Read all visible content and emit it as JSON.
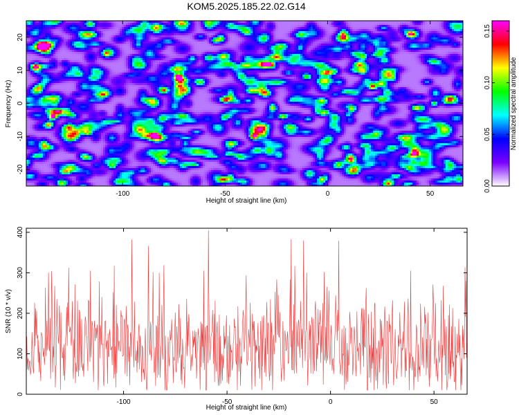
{
  "title": "KOM5.2025.185.22.02.G14",
  "chart_data": [
    {
      "type": "heatmap",
      "xlabel": "Height of straight line (km)",
      "ylabel": "Frequency (Hz)",
      "xlim": [
        -147,
        66
      ],
      "ylim": [
        -25,
        25
      ],
      "x_ticks": [
        -100,
        -50,
        0,
        50
      ],
      "x_tick_labels": [
        "-100",
        "-50",
        "0",
        "50"
      ],
      "y_ticks": [
        -20,
        -10,
        0,
        10,
        20
      ],
      "y_tick_labels": [
        "-20",
        "-10",
        "0",
        "10",
        "20"
      ],
      "colorbar": {
        "label": "Normalized spectral amplitude",
        "range": [
          0,
          0.16
        ],
        "ticks": [
          0,
          0.05,
          0.1,
          0.15
        ],
        "tick_labels": [
          "0.00",
          "0.05",
          "0.10",
          "0.15"
        ],
        "colormap": [
          "#ffffff",
          "#7a00ff",
          "#0000ff",
          "#00ffff",
          "#00ff00",
          "#ffff00",
          "#ff0000",
          "#ff00ff"
        ]
      },
      "peaks": [
        {
          "x": -134,
          "y": -4,
          "value": 0.15
        },
        {
          "x": -73,
          "y": 8,
          "value": 0.13
        },
        {
          "x": -36,
          "y": -10,
          "value": 0.13
        },
        {
          "x": 22,
          "y": 5,
          "value": 0.12
        },
        {
          "x": -143,
          "y": 11,
          "value": 0.08
        },
        {
          "x": -117,
          "y": -9,
          "value": 0.08
        },
        {
          "x": -108,
          "y": 15,
          "value": 0.07
        },
        {
          "x": -80,
          "y": 4,
          "value": 0.08
        },
        {
          "x": -50,
          "y": 1,
          "value": 0.07
        },
        {
          "x": -22,
          "y": -4,
          "value": 0.09
        },
        {
          "x": -10,
          "y": 8,
          "value": 0.07
        },
        {
          "x": -3,
          "y": -23,
          "value": 0.08
        },
        {
          "x": 12,
          "y": -2,
          "value": 0.07
        },
        {
          "x": 40,
          "y": 21,
          "value": 0.07
        },
        {
          "x": 52,
          "y": 0,
          "value": 0.08
        },
        {
          "x": -105,
          "y": -19,
          "value": 0.07
        },
        {
          "x": -55,
          "y": 19,
          "value": 0.07
        },
        {
          "x": -28,
          "y": 12,
          "value": 0.07
        }
      ],
      "style": {
        "grid": false,
        "colorbar_position": "right"
      }
    },
    {
      "type": "line",
      "xlabel": "Height of straight line (km)",
      "ylabel": "SNR (10 * v/v)",
      "xlim": [
        -147,
        66
      ],
      "ylim": [
        0,
        410
      ],
      "x_ticks": [
        -100,
        -50,
        0,
        50
      ],
      "x_tick_labels": [
        "-100",
        "-50",
        "0",
        "50"
      ],
      "y_ticks": [
        0,
        100,
        200,
        300,
        400
      ],
      "y_tick_labels": [
        "0",
        "100",
        "200",
        "300",
        "400"
      ],
      "series": [
        {
          "color": "#ee3333",
          "sample_step_km": 0.25,
          "baseline": 115,
          "min": 10,
          "max": 405,
          "peaks": [
            {
              "x": -96,
              "y": 383
            },
            {
              "x": -88,
              "y": 367
            },
            {
              "x": -59,
              "y": 405
            },
            {
              "x": -19,
              "y": 383
            },
            {
              "x": -13,
              "y": 380
            },
            {
              "x": 4,
              "y": 379
            },
            {
              "x": 65,
              "y": 314
            }
          ]
        }
      ],
      "style": {
        "grid": false,
        "legend": "none"
      }
    }
  ]
}
